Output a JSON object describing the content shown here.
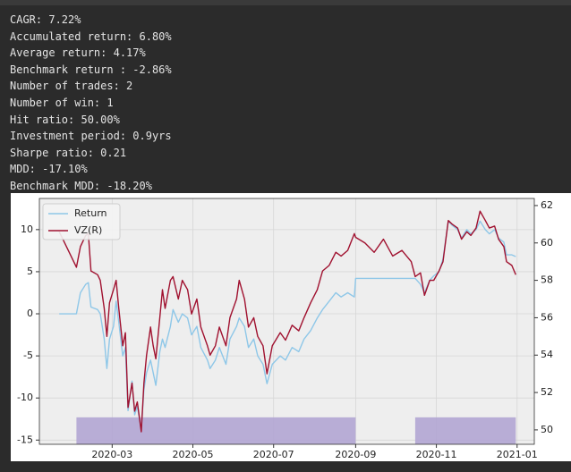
{
  "stats": [
    "CAGR: 7.22%",
    "Accumulated return: 6.80%",
    "Average return: 4.17%",
    "Benchmark return : -2.86%",
    "Number of trades: 2",
    "Number of win: 1",
    "Hit ratio: 50.00%",
    "Investment period: 0.9yrs",
    "Sharpe ratio: 0.21",
    "MDD: -17.10%",
    "Benchmark MDD: -18.20%"
  ],
  "chart_data": {
    "type": "line",
    "grid": true,
    "legend": "upper left",
    "xlim": [
      "2020-01-06",
      "2021-01-14"
    ],
    "xticks": [
      {
        "value": "2020-03-01",
        "label": "2020-03"
      },
      {
        "value": "2020-05-01",
        "label": "2020-05"
      },
      {
        "value": "2020-07-01",
        "label": "2020-07"
      },
      {
        "value": "2020-09-01",
        "label": "2020-09"
      },
      {
        "value": "2020-11-01",
        "label": "2020-11"
      },
      {
        "value": "2021-01-01",
        "label": "2021-01"
      }
    ],
    "ylim": [
      -15.5,
      13.7
    ],
    "yticks": [
      -15,
      -10,
      -5,
      0,
      5,
      10
    ],
    "y2lim": [
      49.23,
      62.38
    ],
    "y2ticks": [
      50,
      52,
      54,
      56,
      58,
      60,
      62
    ],
    "x": [
      "2020-01-21",
      "2020-02-03",
      "2020-02-06",
      "2020-02-10",
      "2020-02-12",
      "2020-02-14",
      "2020-02-19",
      "2020-02-21",
      "2020-02-24",
      "2020-02-26",
      "2020-02-28",
      "2020-03-02",
      "2020-03-04",
      "2020-03-06",
      "2020-03-09",
      "2020-03-11",
      "2020-03-13",
      "2020-03-16",
      "2020-03-18",
      "2020-03-20",
      "2020-03-23",
      "2020-03-25",
      "2020-03-27",
      "2020-03-30",
      "2020-04-01",
      "2020-04-03",
      "2020-04-06",
      "2020-04-08",
      "2020-04-10",
      "2020-04-14",
      "2020-04-16",
      "2020-04-20",
      "2020-04-23",
      "2020-04-27",
      "2020-04-30",
      "2020-05-04",
      "2020-05-07",
      "2020-05-12",
      "2020-05-14",
      "2020-05-18",
      "2020-05-21",
      "2020-05-26",
      "2020-05-29",
      "2020-06-03",
      "2020-06-05",
      "2020-06-09",
      "2020-06-12",
      "2020-06-16",
      "2020-06-19",
      "2020-06-23",
      "2020-06-26",
      "2020-06-30",
      "2020-07-06",
      "2020-07-10",
      "2020-07-15",
      "2020-07-20",
      "2020-07-24",
      "2020-07-29",
      "2020-08-03",
      "2020-08-07",
      "2020-08-12",
      "2020-08-17",
      "2020-08-21",
      "2020-08-26",
      "2020-08-31",
      "2020-09-01",
      "2020-09-08",
      "2020-09-15",
      "2020-09-22",
      "2020-09-29",
      "2020-10-06",
      "2020-10-13",
      "2020-10-16",
      "2020-10-20",
      "2020-10-23",
      "2020-10-27",
      "2020-10-30",
      "2020-11-03",
      "2020-11-06",
      "2020-11-10",
      "2020-11-13",
      "2020-11-17",
      "2020-11-20",
      "2020-11-24",
      "2020-11-27",
      "2020-12-01",
      "2020-12-04",
      "2020-12-08",
      "2020-12-11",
      "2020-12-15",
      "2020-12-18",
      "2020-12-22",
      "2020-12-24",
      "2020-12-28",
      "2020-12-31"
    ],
    "series": [
      {
        "name": "Return",
        "color": "#8ec7e8",
        "values": [
          0,
          0,
          2.5,
          3.5,
          3.7,
          0.8,
          0.5,
          0,
          -3,
          -6.5,
          -3,
          -1.5,
          1.5,
          -1,
          -5,
          -4,
          -11.5,
          -8,
          -12,
          -11,
          -13.8,
          -9,
          -7,
          -5.5,
          -7,
          -8.5,
          -4.5,
          -3,
          -4,
          -1.5,
          0.5,
          -1,
          0,
          -0.5,
          -2.5,
          -1.5,
          -4,
          -5.5,
          -6.5,
          -5.5,
          -4,
          -6,
          -3,
          -1.5,
          -0.5,
          -1.5,
          -4,
          -3,
          -5,
          -6,
          -8.3,
          -6,
          -5,
          -5.5,
          -4,
          -4.5,
          -3,
          -2,
          -0.5,
          0.5,
          1.5,
          2.5,
          2,
          2.5,
          2,
          4.2,
          4.2,
          4.2,
          4.2,
          4.2,
          4.2,
          4.2,
          4.2,
          3.5,
          2.5,
          4,
          4.5,
          5,
          6.5,
          11,
          10.5,
          10,
          9,
          10,
          9.5,
          10,
          11,
          10,
          9.5,
          10,
          9,
          8.5,
          7,
          7,
          6.8
        ]
      },
      {
        "name": "VZ(R)",
        "color": "#a0112f",
        "axis": "y2",
        "values": [
          60.6,
          58.7,
          59.8,
          60.4,
          60.5,
          58.5,
          58.3,
          58.0,
          56.5,
          55.0,
          56.8,
          57.5,
          58.0,
          56.5,
          54.5,
          55.2,
          51.2,
          52.5,
          51.0,
          51.5,
          49.9,
          52.5,
          54.0,
          55.5,
          54.5,
          53.8,
          56.0,
          57.5,
          56.5,
          58.0,
          58.2,
          57.0,
          58.0,
          57.5,
          56.2,
          57.0,
          55.5,
          54.5,
          54.0,
          54.5,
          55.5,
          54.5,
          56.0,
          57.0,
          58.0,
          57.0,
          55.5,
          56.0,
          55.0,
          54.5,
          53.0,
          54.5,
          55.2,
          54.8,
          55.6,
          55.3,
          56.0,
          56.8,
          57.5,
          58.5,
          58.8,
          59.5,
          59.3,
          59.6,
          60.5,
          60.3,
          60.0,
          59.5,
          60.2,
          59.3,
          59.6,
          59.0,
          58.2,
          58.4,
          57.2,
          58.0,
          58.0,
          58.5,
          59.0,
          61.2,
          61.0,
          60.8,
          60.2,
          60.6,
          60.4,
          60.8,
          61.7,
          61.2,
          60.8,
          60.9,
          60.2,
          59.8,
          59.0,
          58.8,
          58.3
        ]
      }
    ],
    "holding": {
      "color": "#b1a5d3",
      "level": -12.3,
      "periods": [
        [
          "2020-02-03",
          "2020-09-01"
        ],
        [
          "2020-10-16",
          "2020-12-31"
        ]
      ]
    }
  }
}
